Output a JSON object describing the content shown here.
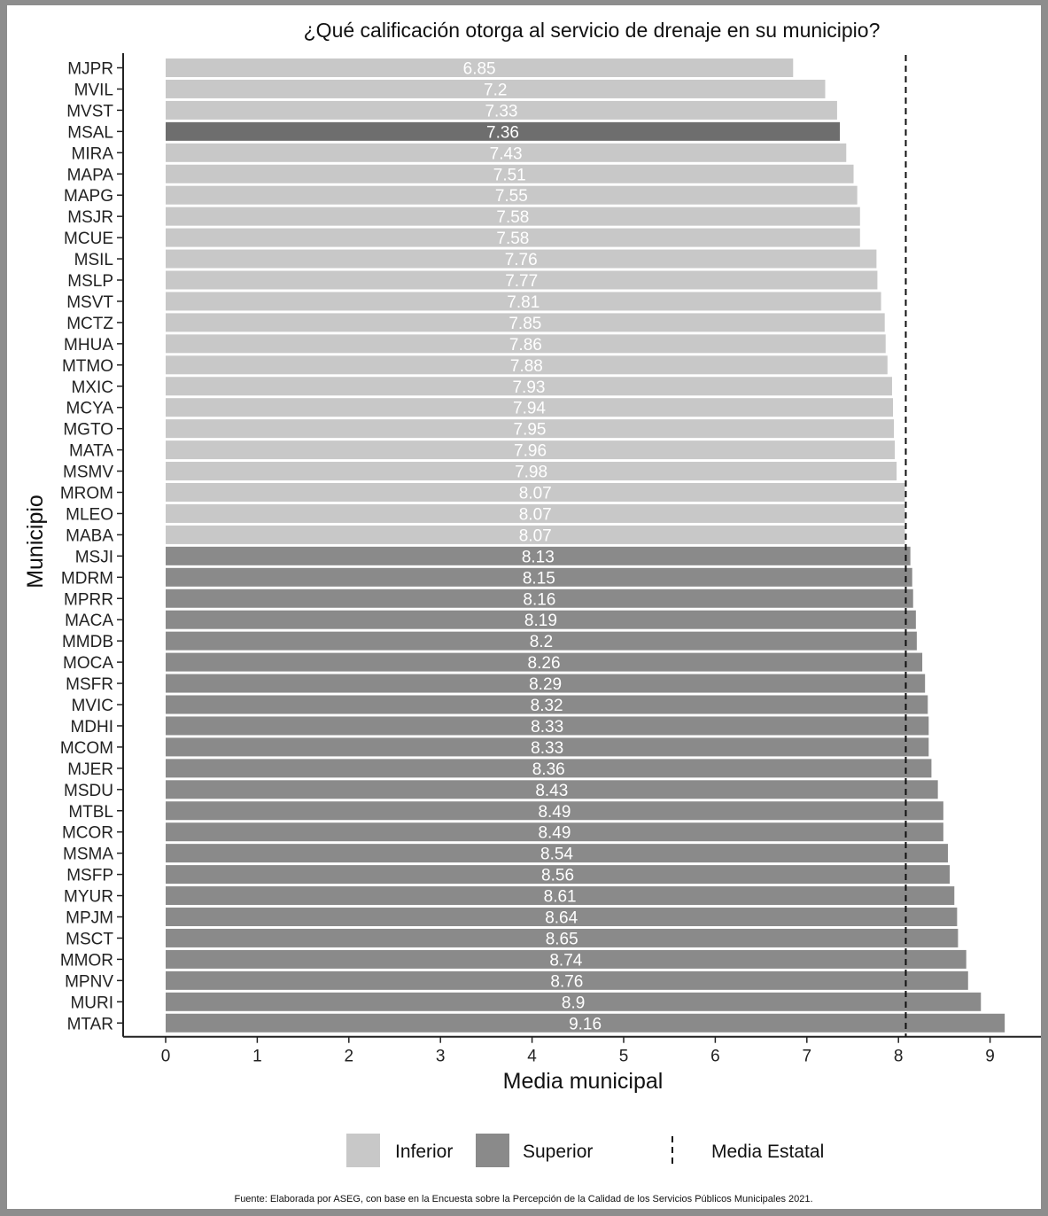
{
  "chart_data": {
    "type": "bar",
    "orientation": "horizontal",
    "title": "¿Qué calificación otorga al servicio de drenaje en su municipio?",
    "xlabel": "Media municipal",
    "ylabel": "Municipio",
    "xlim": [
      0,
      9.6
    ],
    "xticks": [
      0,
      1,
      2,
      3,
      4,
      5,
      6,
      7,
      8,
      9
    ],
    "reference_line": {
      "name": "Media Estatal",
      "value": 8.08,
      "style": "dashed"
    },
    "legend": {
      "placement": "bottom",
      "items": [
        {
          "label": "Inferior",
          "color": "#c8c8c8"
        },
        {
          "label": "Superior",
          "color": "#8a8a8a"
        }
      ],
      "line_label": "Media Estatal"
    },
    "colors": {
      "Inferior": "#c8c8c8",
      "Superior": "#8a8a8a",
      "MSAL": "#6e6e6e"
    },
    "categories": [
      "MJPR",
      "MVIL",
      "MVST",
      "MSAL",
      "MIRA",
      "MAPA",
      "MAPG",
      "MSJR",
      "MCUE",
      "MSIL",
      "MSLP",
      "MSVT",
      "MCTZ",
      "MHUA",
      "MTMO",
      "MXIC",
      "MCYA",
      "MGTO",
      "MATA",
      "MSMV",
      "MROM",
      "MLEO",
      "MABA",
      "MSJI",
      "MDRM",
      "MPRR",
      "MACA",
      "MMDB",
      "MOCA",
      "MSFR",
      "MVIC",
      "MDHI",
      "MCOM",
      "MJER",
      "MSDU",
      "MTBL",
      "MCOR",
      "MSMA",
      "MSFP",
      "MYUR",
      "MPJM",
      "MSCT",
      "MMOR",
      "MPNV",
      "MURI",
      "MTAR"
    ],
    "values": [
      6.85,
      7.2,
      7.33,
      7.36,
      7.43,
      7.51,
      7.55,
      7.58,
      7.58,
      7.76,
      7.77,
      7.81,
      7.85,
      7.86,
      7.88,
      7.93,
      7.94,
      7.95,
      7.96,
      7.98,
      8.07,
      8.07,
      8.07,
      8.13,
      8.15,
      8.16,
      8.19,
      8.2,
      8.26,
      8.29,
      8.32,
      8.33,
      8.33,
      8.36,
      8.43,
      8.49,
      8.49,
      8.54,
      8.56,
      8.61,
      8.64,
      8.65,
      8.74,
      8.76,
      8.9,
      9.16
    ],
    "labels": [
      "6.85",
      "7.2",
      "7.33",
      "7.36",
      "7.43",
      "7.51",
      "7.55",
      "7.58",
      "7.58",
      "7.76",
      "7.77",
      "7.81",
      "7.85",
      "7.86",
      "7.88",
      "7.93",
      "7.94",
      "7.95",
      "7.96",
      "7.98",
      "8.07",
      "8.07",
      "8.07",
      "8.13",
      "8.15",
      "8.16",
      "8.19",
      "8.2",
      "8.26",
      "8.29",
      "8.32",
      "8.33",
      "8.33",
      "8.36",
      "8.43",
      "8.49",
      "8.49",
      "8.54",
      "8.56",
      "8.61",
      "8.64",
      "8.65",
      "8.74",
      "8.76",
      "8.9",
      "9.16"
    ],
    "groups": [
      "Inferior",
      "Inferior",
      "Inferior",
      "Superior",
      "Inferior",
      "Inferior",
      "Inferior",
      "Inferior",
      "Inferior",
      "Inferior",
      "Inferior",
      "Inferior",
      "Inferior",
      "Inferior",
      "Inferior",
      "Inferior",
      "Inferior",
      "Inferior",
      "Inferior",
      "Inferior",
      "Inferior",
      "Inferior",
      "Inferior",
      "Superior",
      "Superior",
      "Superior",
      "Superior",
      "Superior",
      "Superior",
      "Superior",
      "Superior",
      "Superior",
      "Superior",
      "Superior",
      "Superior",
      "Superior",
      "Superior",
      "Superior",
      "Superior",
      "Superior",
      "Superior",
      "Superior",
      "Superior",
      "Superior",
      "Superior",
      "Superior"
    ]
  },
  "source": "Fuente: Elaborada por ASEG, con base en la Encuesta sobre la Percepción de la Calidad de los Servicios Públicos Municipales 2021."
}
